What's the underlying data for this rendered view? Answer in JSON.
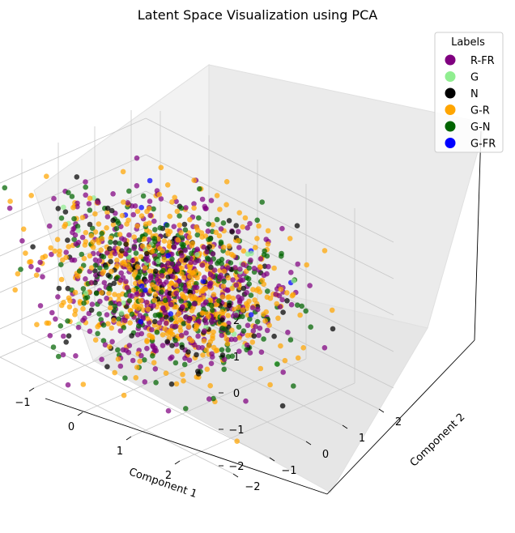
{
  "chart_data": {
    "type": "scatter",
    "title": "Latent Space Visualization using PCA",
    "xlabel": "Component 1",
    "ylabel": "Component 2",
    "zlabel": "",
    "xlim": [
      -2.3,
      2.8
    ],
    "ylim": [
      -2.4,
      2.4
    ],
    "zlim": [
      -2.4,
      2.4
    ],
    "x_ticks": [
      -2,
      -1,
      0,
      1,
      2
    ],
    "y_ticks": [
      -2,
      -1,
      0,
      1,
      2
    ],
    "z_ticks": [
      -2,
      -1,
      0,
      1,
      2
    ],
    "grid": true,
    "legend_placement": "top-right",
    "legend_title": "Labels",
    "series": [
      {
        "name": "R-FR",
        "color": "#800080",
        "count": 520
      },
      {
        "name": "G",
        "color": "#90ee90",
        "count": 30
      },
      {
        "name": "N",
        "color": "#000000",
        "count": 140
      },
      {
        "name": "G-R",
        "color": "#ffa500",
        "count": 600
      },
      {
        "name": "G-N",
        "color": "#006400",
        "count": 300
      },
      {
        "name": "G-FR",
        "color": "#0000ff",
        "count": 14
      }
    ],
    "point_distribution": "random points concentrated near the origin, spread roughly in [-2, 2] on each component"
  }
}
